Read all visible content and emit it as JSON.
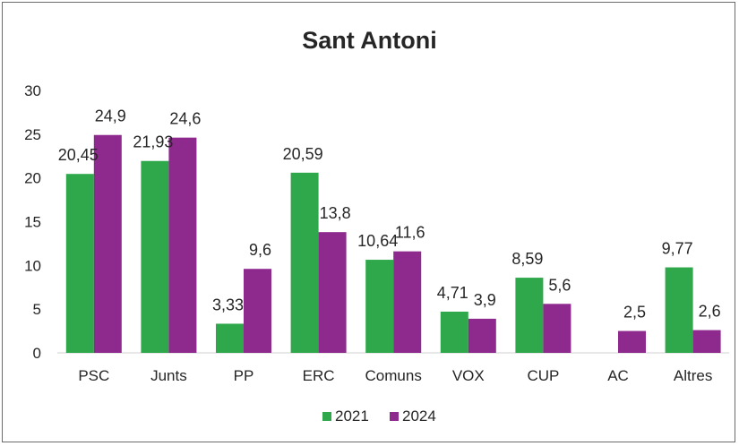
{
  "chart_data": {
    "type": "bar",
    "title": "Sant Antoni",
    "categories": [
      "PSC",
      "Junts",
      "PP",
      "ERC",
      "Comuns",
      "VOX",
      "CUP",
      "AC",
      "Altres"
    ],
    "series": [
      {
        "name": "2021",
        "color": "#2ea84a",
        "values": [
          20.45,
          21.93,
          3.33,
          20.59,
          10.64,
          4.71,
          8.59,
          null,
          9.77
        ],
        "labels": [
          "20,45",
          "21,93",
          "3,33",
          "20,59",
          "10,64",
          "4,71",
          "8,59",
          "",
          "9,77"
        ]
      },
      {
        "name": "2024",
        "color": "#8e2a8e",
        "values": [
          24.9,
          24.6,
          9.6,
          13.8,
          11.6,
          3.9,
          5.6,
          2.5,
          2.6
        ],
        "labels": [
          "24,9",
          "24,6",
          "9,6",
          "13,8",
          "11,6",
          "3,9",
          "5,6",
          "2,5",
          "2,6"
        ]
      }
    ],
    "y_ticks": [
      "0",
      "5",
      "10",
      "15",
      "20",
      "25",
      "30"
    ],
    "ylim": [
      0,
      30
    ],
    "grid": false,
    "legend_position": "bottom"
  }
}
